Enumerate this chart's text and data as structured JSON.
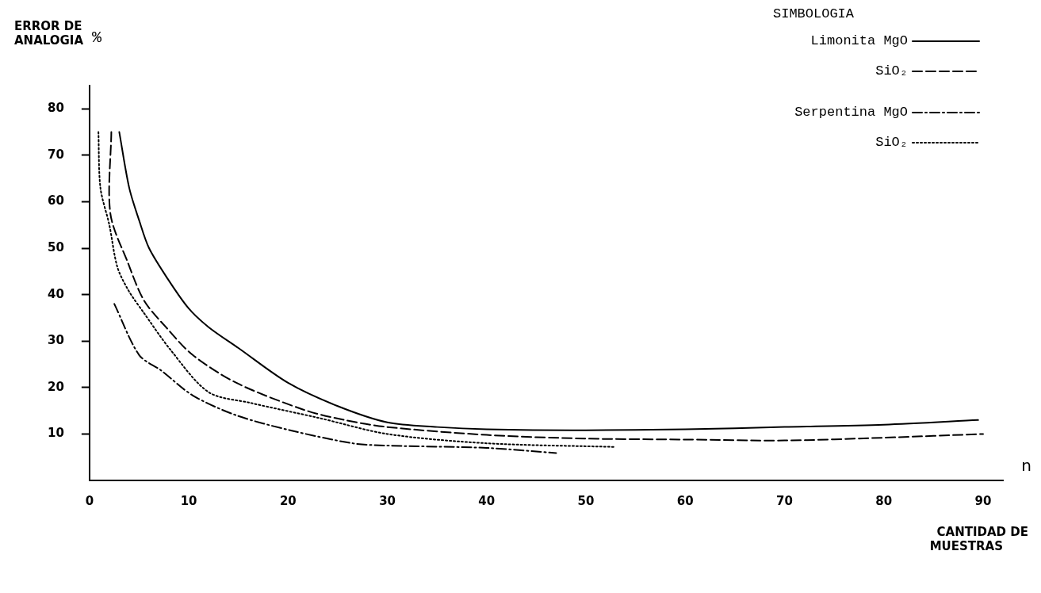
{
  "chart_data": {
    "type": "line",
    "ylabel": "ERROR DE ANALOGIA",
    "xlabel": "CANTIDAD DE MUESTRAS",
    "legend_title": "SIMBOLOGIA",
    "annotations": [
      "%",
      "n"
    ],
    "xlim": [
      0,
      92
    ],
    "xticks": [
      0,
      10,
      20,
      30,
      40,
      50,
      60,
      70,
      80,
      90
    ],
    "ylim": [
      0,
      85
    ],
    "yticks": [
      10,
      20,
      30,
      40,
      50,
      60,
      70,
      80
    ],
    "grid": false,
    "legend": "top right",
    "marker": "none",
    "series": [
      {
        "name": "Limonita MgO",
        "color": "#000000",
        "line_style": "solid",
        "x": [
          3,
          4,
          5,
          6,
          8,
          10,
          12,
          15,
          20,
          25,
          30,
          35,
          40,
          50,
          60,
          70,
          80,
          89.5
        ],
        "values": [
          75,
          63,
          56,
          50,
          43,
          37,
          33,
          28.5,
          21,
          16,
          12.5,
          11.5,
          11,
          10.8,
          11,
          11.5,
          12,
          13
        ]
      },
      {
        "name": "SiO₂",
        "color": "#000000",
        "line_style": "dashed",
        "x": [
          2.2,
          2.1,
          3.9,
          5.5,
          7.7,
          10.4,
          14.8,
          21.6,
          25.7,
          30,
          40,
          50,
          60,
          70,
          80,
          90
        ],
        "values": [
          75,
          57.5,
          46.7,
          38.7,
          33,
          27,
          21,
          15.2,
          13,
          11.5,
          9.8,
          9,
          8.8,
          8.6,
          9.2,
          10
        ]
      },
      {
        "name": "Serpentina MgO",
        "color": "#000000",
        "line_style": "dashdot",
        "x": [
          2.5,
          5,
          7.2,
          10.4,
          14.8,
          20.2,
          26.5,
          30,
          40,
          47
        ],
        "values": [
          38,
          27,
          23.7,
          18.3,
          14,
          10.8,
          8,
          7.5,
          7,
          5.9
        ]
      },
      {
        "name": "SiO₂",
        "color": "#000000",
        "line_style": "dotted",
        "x": [
          0.9,
          1.1,
          2,
          2.8,
          3.9,
          5.5,
          8.2,
          12,
          16.2,
          23,
          30,
          40,
          53
        ],
        "values": [
          75,
          63,
          55,
          46,
          41,
          36,
          28,
          19,
          16.7,
          13.5,
          10,
          8,
          7.2
        ]
      }
    ]
  }
}
